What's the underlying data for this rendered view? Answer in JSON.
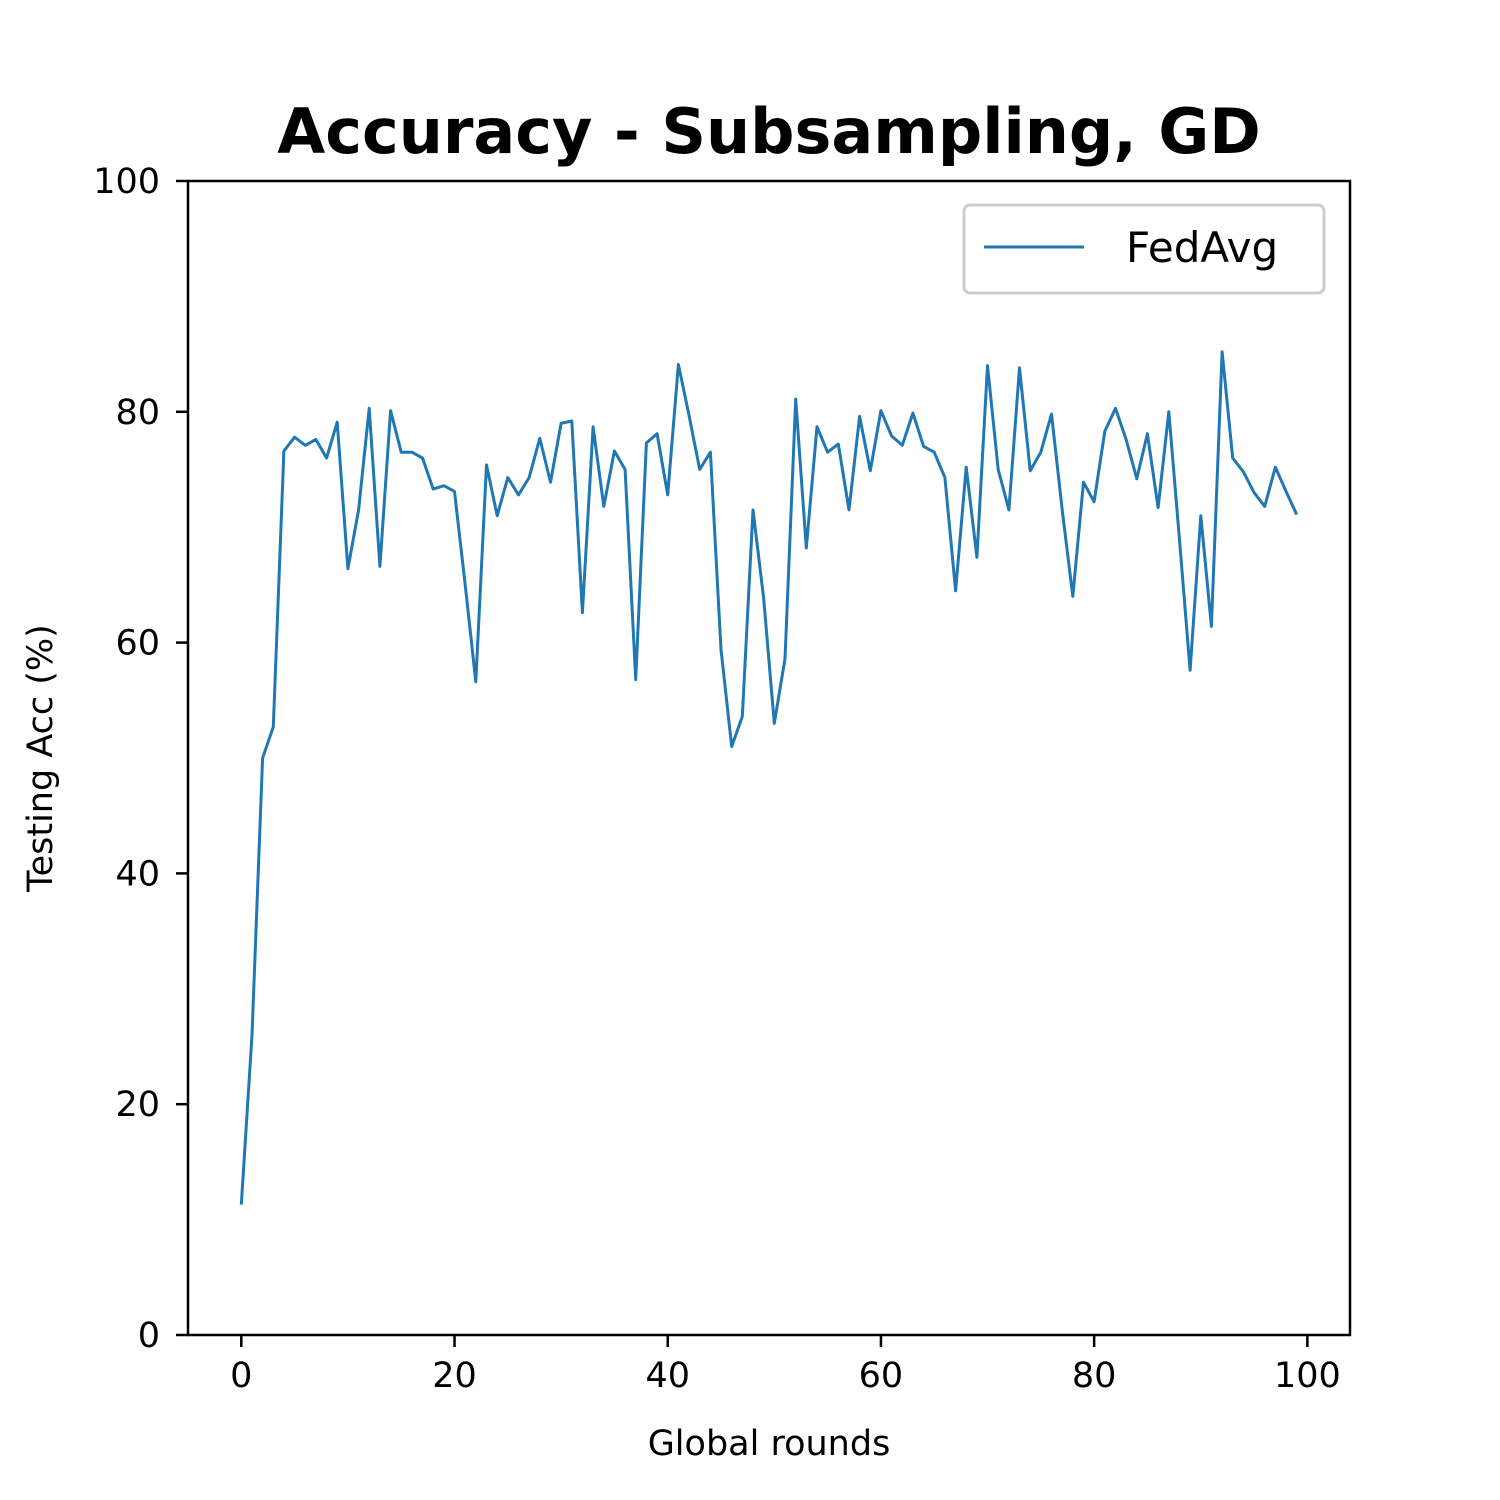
{
  "chart_data": {
    "type": "line",
    "title": "Accuracy - Subsampling, GD",
    "xlabel": "Global rounds",
    "ylabel": "Testing Acc (%)",
    "xlim": [
      -5,
      104
    ],
    "ylim": [
      0,
      100
    ],
    "xticks": [
      0,
      20,
      40,
      60,
      80,
      100
    ],
    "yticks": [
      0,
      20,
      40,
      60,
      80,
      100
    ],
    "legend_position": "top-right",
    "grid": false,
    "series": [
      {
        "name": "FedAvg",
        "color": "#1f77b4",
        "x": [
          0,
          1,
          2,
          3,
          4,
          5,
          6,
          7,
          8,
          9,
          10,
          11,
          12,
          13,
          14,
          15,
          16,
          17,
          18,
          19,
          20,
          21,
          22,
          23,
          24,
          25,
          26,
          27,
          28,
          29,
          30,
          31,
          32,
          33,
          34,
          35,
          36,
          37,
          38,
          39,
          40,
          41,
          42,
          43,
          44,
          45,
          46,
          47,
          48,
          49,
          50,
          51,
          52,
          53,
          54,
          55,
          56,
          57,
          58,
          59,
          60,
          61,
          62,
          63,
          64,
          65,
          66,
          67,
          68,
          69,
          70,
          71,
          72,
          73,
          74,
          75,
          76,
          77,
          78,
          79,
          80,
          81,
          82,
          83,
          84,
          85,
          86,
          87,
          88,
          89,
          90,
          91,
          92,
          93,
          94,
          95,
          96,
          97,
          98,
          99
        ],
        "y": [
          11.3,
          26.0,
          50.0,
          52.7,
          76.6,
          77.8,
          77.1,
          77.6,
          76.0,
          79.1,
          66.4,
          71.5,
          80.3,
          66.6,
          80.1,
          76.5,
          76.5,
          76.0,
          73.3,
          73.6,
          73.1,
          65.0,
          56.6,
          75.4,
          71.0,
          74.3,
          72.8,
          74.3,
          77.7,
          73.9,
          79.0,
          79.2,
          62.6,
          78.7,
          71.8,
          76.6,
          75.0,
          56.8,
          77.3,
          78.1,
          72.8,
          84.1,
          79.7,
          75.0,
          76.5,
          59.4,
          51.0,
          53.6,
          71.5,
          63.8,
          53.0,
          58.6,
          81.1,
          68.2,
          78.7,
          76.5,
          77.2,
          71.5,
          79.6,
          74.9,
          80.1,
          77.9,
          77.1,
          79.9,
          77.0,
          76.5,
          74.3,
          64.5,
          75.2,
          67.4,
          84.0,
          75.0,
          71.5,
          83.8,
          74.9,
          76.5,
          79.8,
          71.5,
          64.0,
          73.9,
          72.2,
          78.3,
          80.3,
          77.6,
          74.2,
          78.1,
          71.7,
          80.0,
          69.0,
          57.6,
          71.0,
          61.4,
          85.2,
          76.0,
          74.8,
          73.0,
          71.8,
          75.2,
          73.1,
          71.1
        ]
      }
    ]
  }
}
